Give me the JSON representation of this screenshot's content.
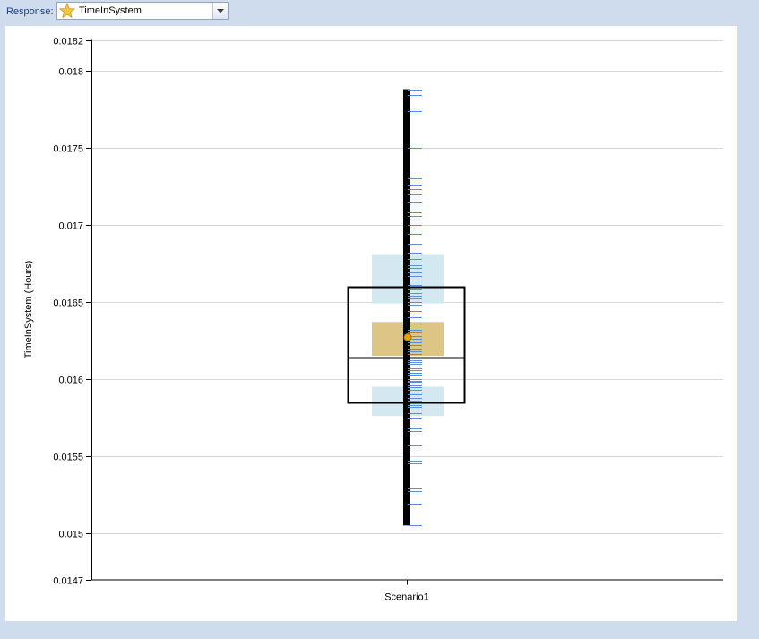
{
  "response": {
    "label": "Response:",
    "selected": "TimeInSystem",
    "icon": "star-icon"
  },
  "chart_data": {
    "type": "boxplot",
    "ylabel": "TimeInSystem (Hours)",
    "xlabel": "",
    "categories": [
      "Scenario1"
    ],
    "ylim": [
      0.0147,
      0.0182
    ],
    "yticks": [
      0.0147,
      0.015,
      0.0155,
      0.016,
      0.0165,
      0.017,
      0.0175,
      0.018,
      0.0182
    ],
    "ytick_labels": [
      "0.0147",
      "0.015",
      "0.0155",
      "0.016",
      "0.0165",
      "0.017",
      "0.0175",
      "0.018",
      "0.0182"
    ],
    "grid": "horizontal",
    "box": {
      "min": 0.01505,
      "max": 0.01788,
      "q1": 0.01585,
      "median": 0.01614,
      "q3": 0.0166,
      "mean": 0.01627
    },
    "confidence_bands": {
      "upper_percentile_ci": [
        0.01649,
        0.01681
      ],
      "mean_ci": [
        0.01615,
        0.01637
      ],
      "lower_percentile_ci": [
        0.01576,
        0.01595
      ]
    },
    "observations": [
      0.01505,
      0.01519,
      0.01527,
      0.01529,
      0.01545,
      0.01547,
      0.01557,
      0.01566,
      0.01568,
      0.01575,
      0.01578,
      0.0158,
      0.01582,
      0.01583,
      0.01585,
      0.01586,
      0.01588,
      0.0159,
      0.01591,
      0.01593,
      0.01595,
      0.01596,
      0.01598,
      0.01599,
      0.016,
      0.01602,
      0.01603,
      0.01604,
      0.01606,
      0.01607,
      0.01608,
      0.0161,
      0.01611,
      0.01612,
      0.01614,
      0.01616,
      0.01618,
      0.0162,
      0.01622,
      0.01624,
      0.01626,
      0.01628,
      0.0163,
      0.01632,
      0.01636,
      0.0164,
      0.01644,
      0.01648,
      0.0165,
      0.01652,
      0.01654,
      0.01656,
      0.01658,
      0.01661,
      0.01664,
      0.01667,
      0.01669,
      0.01672,
      0.01674,
      0.01678,
      0.01682,
      0.01688,
      0.01694,
      0.017,
      0.01706,
      0.01708,
      0.01715,
      0.0172,
      0.01723,
      0.01726,
      0.0173,
      0.0175,
      0.01774,
      0.01784,
      0.01787,
      0.01788
    ],
    "colors": {
      "whisker": "#000000",
      "box_outline": "#000000",
      "percentile_ci": "#d4e8f2",
      "mean_ci": "#ddc585",
      "mean_marker": "#e6a100",
      "observation": "#5b8fd6",
      "grid": "#d8d8d8"
    }
  }
}
